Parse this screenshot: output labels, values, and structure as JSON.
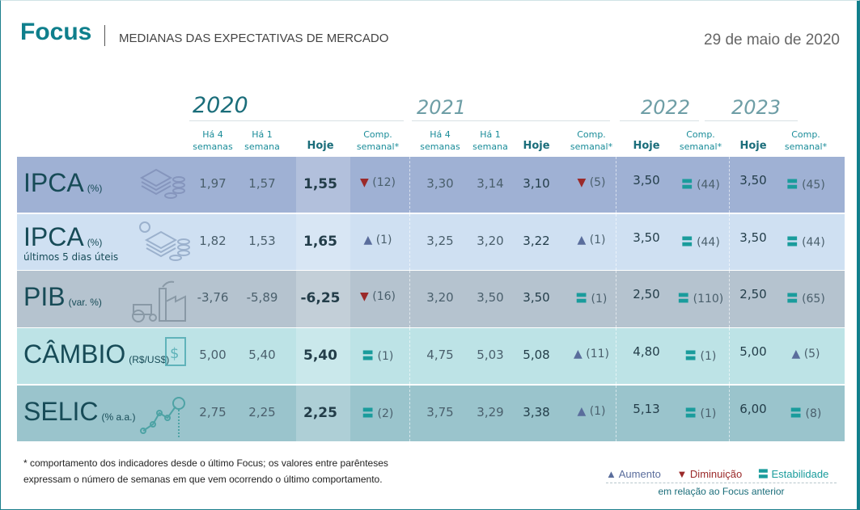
{
  "header": {
    "brand": "Focus",
    "subtitle": "MEDIANAS DAS EXPECTATIVAS DE MERCADO",
    "date": "29 de maio de 2020"
  },
  "years": [
    "2020",
    "2021",
    "2022",
    "2023"
  ],
  "col_headers": {
    "h4": [
      "Há 4",
      "semanas"
    ],
    "h1": [
      "Há 1",
      "semana"
    ],
    "hoje": "Hoje",
    "comp": [
      "Comp.",
      "semanal*"
    ]
  },
  "colors": {
    "up": "#5a6d9c",
    "down": "#9b2a2a",
    "eq": "#1a9c9c"
  },
  "rows": [
    {
      "name": "IPCA",
      "unit": "(%)",
      "note": "",
      "icon": "money-coins-icon",
      "bg": "#9fb1d4",
      "y2020": [
        "1,97",
        "1,57",
        "1,55",
        {
          "t": "down",
          "n": "(12)"
        }
      ],
      "y2021": [
        "3,30",
        "3,14",
        "3,10",
        {
          "t": "down",
          "n": "(5)"
        }
      ],
      "y2022": [
        "3,50",
        {
          "t": "eq",
          "n": "(44)"
        }
      ],
      "y2023": [
        "3,50",
        {
          "t": "eq",
          "n": "(45)"
        }
      ]
    },
    {
      "name": "IPCA",
      "unit": "(%)",
      "note": "últimos 5 dias úteis",
      "icon": "money-coins-dollar-icon",
      "bg": "#cfe0f2",
      "y2020": [
        "1,82",
        "1,53",
        "1,65",
        {
          "t": "up",
          "n": "(1)"
        }
      ],
      "y2021": [
        "3,25",
        "3,20",
        "3,22",
        {
          "t": "up",
          "n": "(1)"
        }
      ],
      "y2022": [
        "3,50",
        {
          "t": "eq",
          "n": "(44)"
        }
      ],
      "y2023": [
        "3,50",
        {
          "t": "eq",
          "n": "(44)"
        }
      ]
    },
    {
      "name": "PIB",
      "unit": "(var. %)",
      "note": "",
      "icon": "factory-tractor-icon",
      "bg": "#b5c3cf",
      "y2020": [
        "-3,76",
        "-5,89",
        "-6,25",
        {
          "t": "down",
          "n": "(16)"
        }
      ],
      "y2021": [
        "3,20",
        "3,50",
        "3,50",
        {
          "t": "eq",
          "n": "(1)"
        }
      ],
      "y2022": [
        "2,50",
        {
          "t": "eq",
          "n": "(110)"
        }
      ],
      "y2023": [
        "2,50",
        {
          "t": "eq",
          "n": "(65)"
        }
      ]
    },
    {
      "name": "CÂMBIO",
      "unit": "(R$/US$)",
      "note": "",
      "icon": "currency-exchange-icon",
      "bg": "#bde3e6",
      "y2020": [
        "5,00",
        "5,40",
        "5,40",
        {
          "t": "eq",
          "n": "(1)"
        }
      ],
      "y2021": [
        "4,75",
        "5,03",
        "5,08",
        {
          "t": "up",
          "n": "(11)"
        }
      ],
      "y2022": [
        "4,80",
        {
          "t": "eq",
          "n": "(1)"
        }
      ],
      "y2023": [
        "5,00",
        {
          "t": "up",
          "n": "(5)"
        }
      ]
    },
    {
      "name": "SELIC",
      "unit": "(% a.a.)",
      "note": "",
      "icon": "interest-rate-chart-icon",
      "bg": "#9ac4cc",
      "y2020": [
        "2,75",
        "2,25",
        "2,25",
        {
          "t": "eq",
          "n": "(2)"
        }
      ],
      "y2021": [
        "3,75",
        "3,29",
        "3,38",
        {
          "t": "up",
          "n": "(1)"
        }
      ],
      "y2022": [
        "5,13",
        {
          "t": "eq",
          "n": "(1)"
        }
      ],
      "y2023": [
        "6,00",
        {
          "t": "eq",
          "n": "(8)"
        }
      ]
    }
  ],
  "footnote": "* comportamento dos indicadores desde o último Focus; os valores entre parênteses expressam o número de semanas em que vem ocorrendo o último comportamento.",
  "legend": {
    "up": "Aumento",
    "down": "Diminuição",
    "eq": "Estabilidade",
    "sub": "em relação ao Focus anterior"
  }
}
